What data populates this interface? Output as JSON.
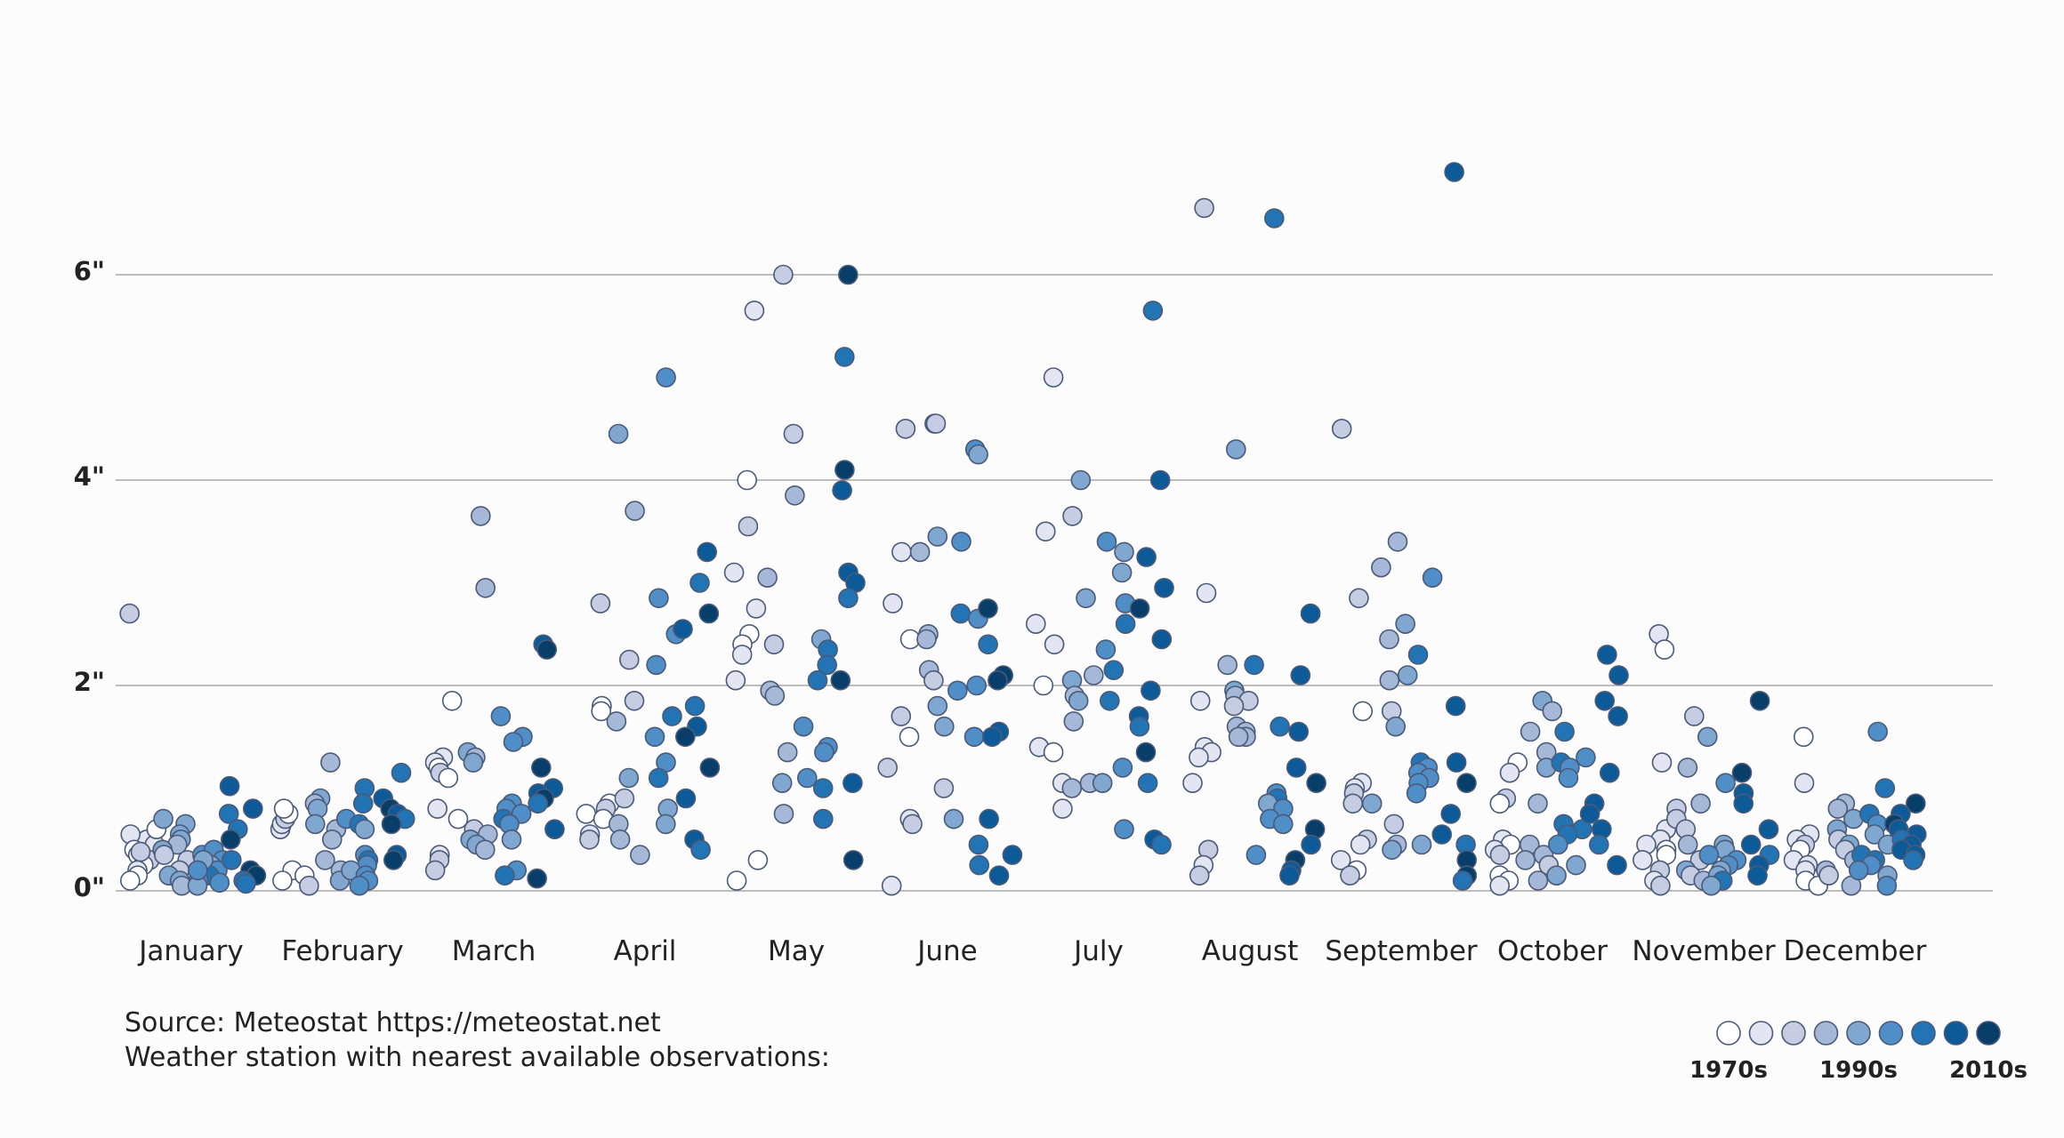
{
  "chart_data": {
    "type": "scatter",
    "title": "",
    "xlabel": "",
    "ylabel": "",
    "ylim": [
      0,
      7.2
    ],
    "y_ticks": [
      {
        "value": 0,
        "label": "0\""
      },
      {
        "value": 2,
        "label": "2\""
      },
      {
        "value": 4,
        "label": "4\""
      },
      {
        "value": 6,
        "label": "6\""
      }
    ],
    "months": [
      "January",
      "February",
      "March",
      "April",
      "May",
      "June",
      "July",
      "August",
      "September",
      "October",
      "November",
      "December"
    ],
    "decade_colors": [
      "#ffffff",
      "#e3e6f2",
      "#c6cde3",
      "#a6b8d8",
      "#7fa7d0",
      "#4f8ec6",
      "#2274b4",
      "#0d5a98",
      "#083e6a"
    ],
    "legend": {
      "labels": [
        "1970s",
        "1990s",
        "2010s"
      ],
      "label_swatch_index": [
        0,
        4,
        8
      ]
    },
    "series": [
      {
        "month": 1,
        "values": [
          [
            0.5,
            0.55,
            0.45,
            0.4,
            0.35,
            0.3,
            0.25,
            0.2,
            0.15,
            0.1,
            0.6,
            2.7,
            0.38
          ],
          [
            0.7,
            0.65,
            0.55,
            0.5,
            0.45,
            0.4,
            0.35,
            0.3,
            0.2,
            0.15,
            0.1,
            0.05
          ],
          [
            0.35,
            0.4,
            0.3,
            0.25,
            0.2,
            0.15,
            0.1,
            0.08,
            0.05,
            0.3,
            0.2
          ],
          [
            1.02,
            0.8,
            0.75,
            0.6,
            0.5,
            0.3,
            0.2,
            0.15,
            0.1,
            0.07
          ]
        ]
      },
      {
        "month": 2,
        "values": [
          [
            0.6,
            0.65,
            0.7,
            0.75,
            0.8,
            0.2,
            0.15,
            0.1,
            0.05
          ],
          [
            1.25,
            0.9,
            0.85,
            0.8,
            0.65,
            0.6,
            0.5,
            0.3,
            0.2,
            0.1
          ],
          [
            1.0,
            0.85,
            0.7,
            0.65,
            0.6,
            0.35,
            0.3,
            0.25,
            0.2,
            0.15,
            0.1,
            0.05
          ],
          [
            1.15,
            0.9,
            0.8,
            0.75,
            0.7,
            0.65,
            0.35,
            0.3
          ]
        ]
      },
      {
        "month": 3,
        "values": [
          [
            1.85,
            1.3,
            1.25,
            1.2,
            1.15,
            1.1,
            0.8,
            0.7,
            0.35,
            0.3,
            0.2
          ],
          [
            3.65,
            2.95,
            1.35,
            1.3,
            1.25,
            0.6,
            0.55,
            0.5,
            0.45,
            0.4
          ],
          [
            1.7,
            1.5,
            1.45,
            0.85,
            0.8,
            0.75,
            0.7,
            0.65,
            0.5,
            0.2,
            0.15
          ],
          [
            2.4,
            2.35,
            1.2,
            1.0,
            0.95,
            0.9,
            0.85,
            0.6,
            0.12
          ]
        ]
      },
      {
        "month": 4,
        "values": [
          [
            2.8,
            1.8,
            1.75,
            0.85,
            0.8,
            0.75,
            0.7,
            0.55,
            0.5
          ],
          [
            4.45,
            3.7,
            2.25,
            1.85,
            1.65,
            1.1,
            0.9,
            0.65,
            0.5,
            0.35
          ],
          [
            5.0,
            2.85,
            2.5,
            2.2,
            1.7,
            1.5,
            1.25,
            1.1,
            0.8,
            0.65
          ],
          [
            3.3,
            3.0,
            2.7,
            2.55,
            1.8,
            1.6,
            1.5,
            1.2,
            0.9,
            0.5,
            0.4
          ]
        ]
      },
      {
        "month": 5,
        "values": [
          [
            5.65,
            4.0,
            3.55,
            3.1,
            2.75,
            2.5,
            2.4,
            2.3,
            2.05,
            0.3,
            0.1
          ],
          [
            6.0,
            4.45,
            3.85,
            3.05,
            2.4,
            1.95,
            1.9,
            1.35,
            1.05,
            0.75
          ],
          [
            2.45,
            2.35,
            2.2,
            2.05,
            1.6,
            1.4,
            1.35,
            1.1,
            1.0,
            0.7
          ],
          [
            6.0,
            5.2,
            4.1,
            3.9,
            3.1,
            3.0,
            2.85,
            2.05,
            1.05,
            0.3
          ]
        ]
      },
      {
        "month": 6,
        "values": [
          [
            4.5,
            3.3,
            2.8,
            2.45,
            1.7,
            1.5,
            1.2,
            0.7,
            0.65,
            0.05
          ],
          [
            4.55,
            4.55,
            3.45,
            3.3,
            2.5,
            2.45,
            2.15,
            2.05,
            1.8,
            1.6,
            1.0
          ],
          [
            4.3,
            4.25,
            3.4,
            2.7,
            2.65,
            2.0,
            1.95,
            1.5,
            0.7,
            0.45,
            0.25
          ],
          [
            2.75,
            2.4,
            2.1,
            2.05,
            1.55,
            1.5,
            0.7,
            0.35,
            0.15
          ]
        ]
      },
      {
        "month": 7,
        "values": [
          [
            5.0,
            3.5,
            2.6,
            2.4,
            2.0,
            1.4,
            1.35,
            1.05,
            0.8
          ],
          [
            4.0,
            3.65,
            2.85,
            2.1,
            2.05,
            1.9,
            1.85,
            1.65,
            1.05,
            1.0
          ],
          [
            3.4,
            3.3,
            3.1,
            2.8,
            2.6,
            2.35,
            2.15,
            1.85,
            1.2,
            1.05,
            0.6
          ],
          [
            5.65,
            4.0,
            3.25,
            2.95,
            2.75,
            2.45,
            1.95,
            1.7,
            1.6,
            1.35,
            1.05,
            0.5,
            0.45
          ]
        ]
      },
      {
        "month": 8,
        "values": [
          [
            6.65,
            2.9,
            1.85,
            1.4,
            1.35,
            1.3,
            1.05,
            0.4,
            0.25,
            0.15
          ],
          [
            4.3,
            2.2,
            1.95,
            1.9,
            1.85,
            1.8,
            1.6,
            1.55,
            1.5,
            1.5
          ],
          [
            6.55,
            2.2,
            1.6,
            0.95,
            0.9,
            0.85,
            0.8,
            0.7,
            0.65,
            0.35
          ],
          [
            2.7,
            2.1,
            1.55,
            1.2,
            1.05,
            0.6,
            0.45,
            0.3,
            0.2,
            0.15
          ]
        ]
      },
      {
        "month": 9,
        "values": [
          [
            4.5,
            2.85,
            1.75,
            1.05,
            1.0,
            0.95,
            0.85,
            0.5,
            0.45,
            0.3,
            0.2,
            0.15
          ],
          [
            3.4,
            3.15,
            2.45,
            2.05,
            1.75,
            1.6,
            0.85,
            0.65,
            0.45,
            0.4
          ],
          [
            3.05,
            2.6,
            2.3,
            2.1,
            1.25,
            1.2,
            1.15,
            1.1,
            1.05,
            0.95,
            0.45
          ],
          [
            7.0,
            1.8,
            1.25,
            1.05,
            0.75,
            0.55,
            0.45,
            0.3,
            0.15,
            0.1
          ]
        ]
      },
      {
        "month": 10,
        "values": [
          [
            1.25,
            1.15,
            0.9,
            0.85,
            0.5,
            0.45,
            0.4,
            0.35,
            0.15,
            0.1,
            0.05
          ],
          [
            1.85,
            1.75,
            1.55,
            1.35,
            1.2,
            0.85,
            0.45,
            0.35,
            0.3,
            0.25,
            0.1
          ],
          [
            1.55,
            1.3,
            1.25,
            1.2,
            1.1,
            0.65,
            0.6,
            0.55,
            0.45,
            0.25,
            0.15
          ],
          [
            2.3,
            2.1,
            1.85,
            1.7,
            1.15,
            0.85,
            0.75,
            0.6,
            0.45,
            0.25
          ]
        ]
      },
      {
        "month": 11,
        "values": [
          [
            2.5,
            2.35,
            1.25,
            0.6,
            0.5,
            0.45,
            0.4,
            0.35,
            0.3,
            0.2,
            0.1,
            0.05
          ],
          [
            1.7,
            1.2,
            0.85,
            0.8,
            0.7,
            0.6,
            0.45,
            0.3,
            0.2,
            0.15,
            0.1
          ],
          [
            1.5,
            1.05,
            0.45,
            0.4,
            0.35,
            0.3,
            0.25,
            0.2,
            0.15,
            0.1,
            0.05
          ],
          [
            1.85,
            1.15,
            0.95,
            0.85,
            0.6,
            0.45,
            0.35,
            0.25,
            0.15
          ]
        ]
      },
      {
        "month": 12,
        "values": [
          [
            1.5,
            1.05,
            0.55,
            0.5,
            0.45,
            0.4,
            0.3,
            0.25,
            0.2,
            0.1,
            0.05
          ],
          [
            0.85,
            0.8,
            0.7,
            0.6,
            0.5,
            0.45,
            0.4,
            0.3,
            0.2,
            0.15,
            0.05
          ],
          [
            1.55,
            1.0,
            0.75,
            0.65,
            0.55,
            0.45,
            0.35,
            0.3,
            0.25,
            0.2,
            0.15,
            0.05
          ],
          [
            0.85,
            0.75,
            0.65,
            0.6,
            0.55,
            0.5,
            0.45,
            0.4,
            0.35,
            0.3
          ]
        ]
      }
    ]
  },
  "source": {
    "line1": "Source: Meteostat https://meteostat.net",
    "line2": "Weather station with nearest available observations:"
  }
}
